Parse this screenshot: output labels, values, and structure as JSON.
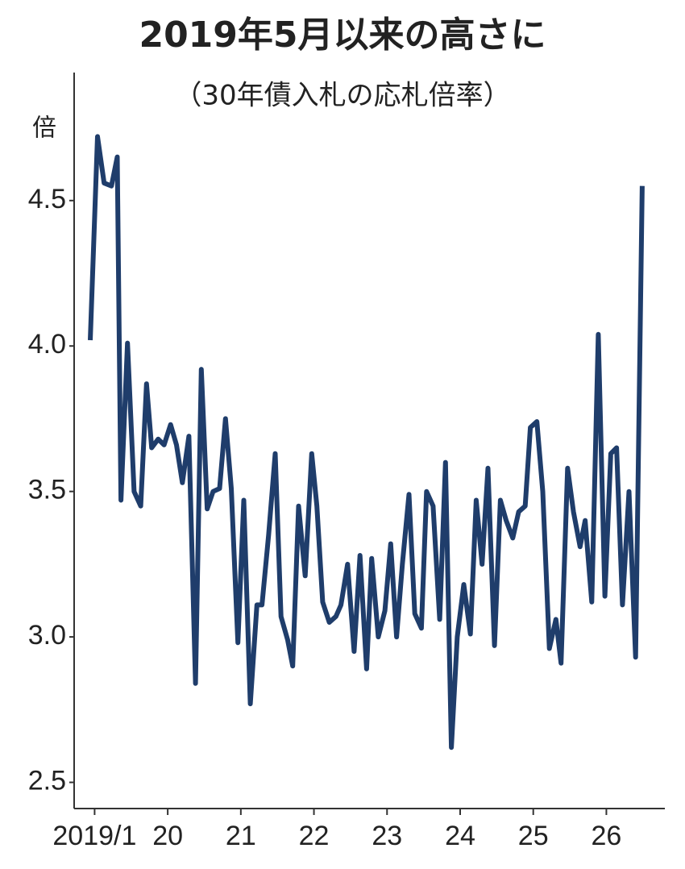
{
  "chart_data": {
    "type": "line",
    "title": "2019年5月以来の高さに",
    "subtitle": "（30年債入札の応札倍率）",
    "y_label": "倍",
    "x": [
      2018.94,
      2019.04,
      2019.13,
      2019.23,
      2019.31,
      2019.36,
      2019.45,
      2019.54,
      2019.63,
      2019.71,
      2019.78,
      2019.87,
      2019.95,
      2020.04,
      2020.12,
      2020.2,
      2020.29,
      2020.38,
      2020.46,
      2020.54,
      2020.62,
      2020.71,
      2020.79,
      2020.87,
      2020.96,
      2021.04,
      2021.13,
      2021.22,
      2021.29,
      2021.38,
      2021.47,
      2021.55,
      2021.64,
      2021.71,
      2021.79,
      2021.88,
      2021.97,
      2022.04,
      2022.12,
      2022.21,
      2022.3,
      2022.37,
      2022.46,
      2022.55,
      2022.63,
      2022.72,
      2022.79,
      2022.88,
      2022.97,
      2023.05,
      2023.13,
      2023.21,
      2023.3,
      2023.38,
      2023.47,
      2023.54,
      2023.63,
      2023.72,
      2023.8,
      2023.88,
      2023.96,
      2024.05,
      2024.14,
      2024.22,
      2024.3,
      2024.38,
      2024.47,
      2024.55,
      2024.63,
      2024.72,
      2024.8,
      2024.89,
      2024.96,
      2025.05,
      2025.13,
      2025.22,
      2025.31,
      2025.38,
      2025.47,
      2025.55,
      2025.64,
      2025.71,
      2025.8,
      2025.89,
      2025.98,
      2026.06,
      2026.14,
      2026.22,
      2026.31,
      2026.4,
      2026.49
    ],
    "series": [
      {
        "color": "#1f3d6b",
        "values": [
          4.02,
          4.72,
          4.56,
          4.55,
          4.65,
          3.47,
          4.01,
          3.5,
          3.45,
          3.87,
          3.65,
          3.68,
          3.66,
          3.73,
          3.66,
          3.53,
          3.69,
          2.84,
          3.92,
          3.44,
          3.5,
          3.51,
          3.75,
          3.51,
          2.98,
          3.47,
          2.77,
          3.11,
          3.11,
          3.35,
          3.63,
          3.07,
          2.99,
          2.9,
          3.45,
          3.21,
          3.63,
          3.45,
          3.12,
          3.05,
          3.07,
          3.11,
          3.25,
          2.95,
          3.28,
          2.89,
          3.27,
          3.0,
          3.09,
          3.32,
          3.0,
          3.25,
          3.49,
          3.08,
          3.03,
          3.5,
          3.45,
          3.06,
          3.6,
          2.62,
          3.0,
          3.18,
          3.01,
          3.47,
          3.25,
          3.58,
          2.97,
          3.47,
          3.4,
          3.34,
          3.43,
          3.45,
          3.72,
          3.74,
          3.5,
          2.96,
          3.06,
          2.91,
          3.58,
          3.43,
          3.31,
          3.4,
          3.12,
          4.04,
          3.14,
          3.63,
          3.65,
          3.11,
          3.5,
          2.93,
          4.55
        ]
      }
    ],
    "xlim": [
      2018.72,
      2026.8
    ],
    "xticks": [
      {
        "value": 2019,
        "label": "2019/1"
      },
      {
        "value": 2020,
        "label": "20"
      },
      {
        "value": 2021,
        "label": "21"
      },
      {
        "value": 2022,
        "label": "22"
      },
      {
        "value": 2023,
        "label": "23"
      },
      {
        "value": 2024,
        "label": "24"
      },
      {
        "value": 2025,
        "label": "25"
      },
      {
        "value": 2026,
        "label": "26"
      }
    ],
    "ylim": [
      2.41,
      4.94
    ],
    "yticks": [
      2.5,
      {
        "value": 3,
        "label": "3.0"
      },
      3.5,
      {
        "value": 4,
        "label": "4.0"
      },
      4.5
    ],
    "grid": false
  }
}
